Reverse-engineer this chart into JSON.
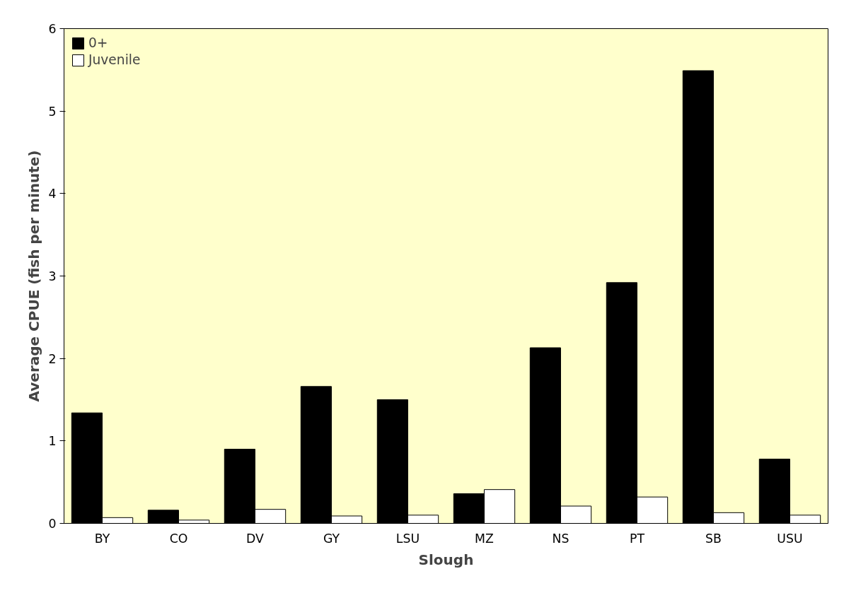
{
  "chart_data": {
    "type": "bar",
    "xlabel": "Slough",
    "ylabel": "Average CPUE (fish per minute)",
    "categories": [
      "BY",
      "CO",
      "DV",
      "GY",
      "LSU",
      "MZ",
      "NS",
      "PT",
      "SB",
      "USU"
    ],
    "series": [
      {
        "name": "0+",
        "color": "#000000",
        "values": [
          1.34,
          0.16,
          0.9,
          1.66,
          1.5,
          0.36,
          2.13,
          2.92,
          5.49,
          0.78
        ]
      },
      {
        "name": "Juvenile",
        "color": "#ffffff",
        "values": [
          0.07,
          0.04,
          0.17,
          0.09,
          0.1,
          0.41,
          0.21,
          0.32,
          0.13,
          0.1
        ]
      }
    ],
    "ylim": [
      0,
      6
    ],
    "yticks": [
      0,
      1,
      2,
      3,
      4,
      5,
      6
    ],
    "grid": false,
    "legend": "top left"
  }
}
